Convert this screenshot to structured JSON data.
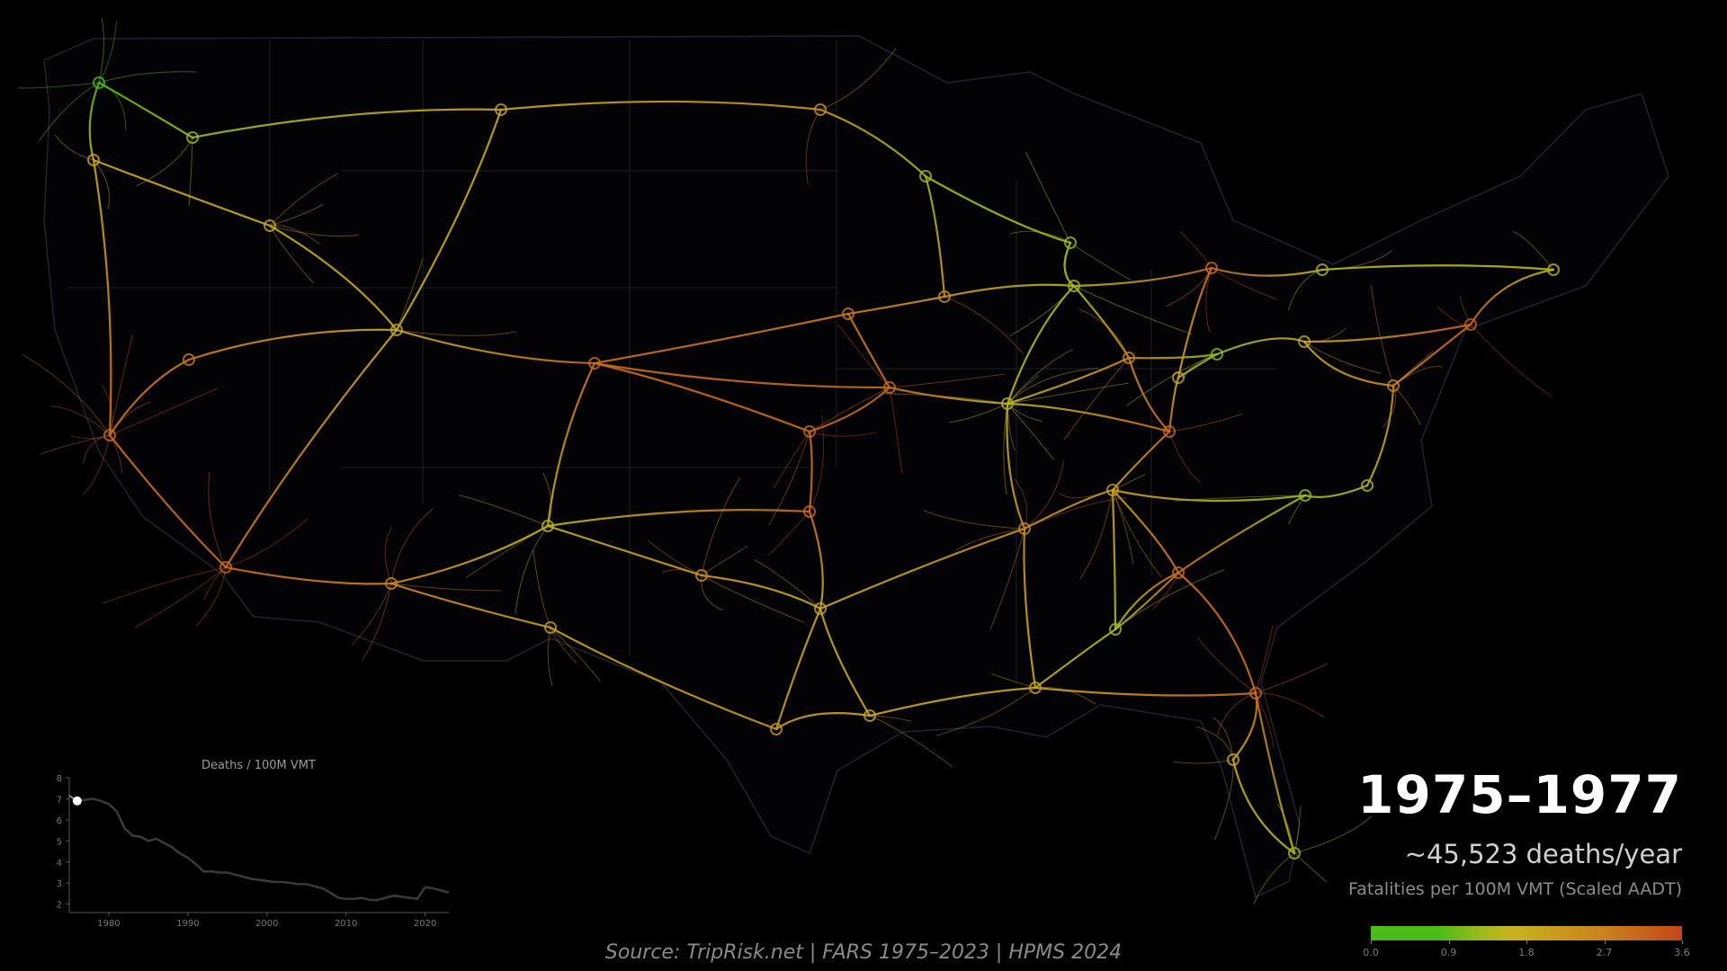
{
  "period": "1975–1977",
  "deaths_per_year": "~45,523 deaths/year",
  "metric_label": "Fatalities per 100M VMT (Scaled AADT)",
  "colorbar": {
    "ticks": [
      "0.0",
      "0.9",
      "1.8",
      "2.7",
      "3.6"
    ],
    "range": [
      0,
      3.6
    ],
    "colors": [
      "#4cbb17",
      "#9bba1c",
      "#c8b41e",
      "#c9821e",
      "#c5441a"
    ]
  },
  "source": "Source: TripRisk.net  |  FARS 1975–2023  |  HPMS 2024",
  "chart_data": {
    "type": "line",
    "title": "Deaths / 100M VMT",
    "xlim": [
      1975,
      2023
    ],
    "ylim": [
      1.6,
      8
    ],
    "yticks": [
      2,
      3,
      4,
      5,
      6,
      7,
      8
    ],
    "xticks": [
      1980,
      1990,
      2000,
      2010,
      2020
    ],
    "highlight": {
      "x": 1976,
      "y": 6.9
    },
    "x": [
      1975,
      1976,
      1977,
      1978,
      1979,
      1980,
      1981,
      1982,
      1983,
      1984,
      1985,
      1986,
      1987,
      1988,
      1989,
      1990,
      1991,
      1992,
      1993,
      1994,
      1995,
      1996,
      1997,
      1998,
      1999,
      2000,
      2001,
      2002,
      2003,
      2004,
      2005,
      2006,
      2007,
      2008,
      2009,
      2010,
      2011,
      2012,
      2013,
      2014,
      2015,
      2016,
      2017,
      2018,
      2019,
      2020,
      2021,
      2022,
      2023
    ],
    "y": [
      7.15,
      6.9,
      6.95,
      7.0,
      6.9,
      6.75,
      6.4,
      5.6,
      5.25,
      5.2,
      5.0,
      5.1,
      4.9,
      4.7,
      4.4,
      4.2,
      3.9,
      3.55,
      3.55,
      3.5,
      3.5,
      3.4,
      3.3,
      3.2,
      3.15,
      3.1,
      3.05,
      3.05,
      3.0,
      2.95,
      2.95,
      2.85,
      2.75,
      2.55,
      2.3,
      2.25,
      2.25,
      2.3,
      2.2,
      2.2,
      2.3,
      2.4,
      2.35,
      2.3,
      2.25,
      2.8,
      2.75,
      2.65,
      2.55
    ]
  }
}
